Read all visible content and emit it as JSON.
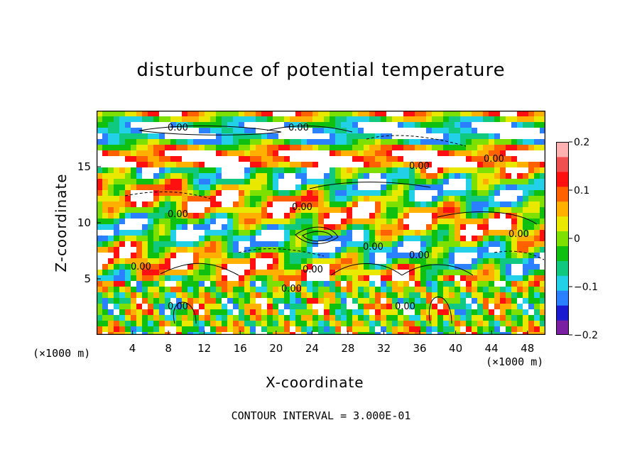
{
  "chart_data": {
    "type": "heatmap",
    "title": "disturbunce of potential temperature",
    "xlabel": "X-coordinate",
    "ylabel": "Z-coordinate",
    "x_unit": "(×1000 m)",
    "xlim": [
      0,
      50
    ],
    "ylim": [
      0,
      20
    ],
    "x_ticks": [
      "4",
      "8",
      "12",
      "16",
      "20",
      "24",
      "28",
      "32",
      "36",
      "40",
      "44",
      "48"
    ],
    "y_ticks": [
      "5",
      "10",
      "15"
    ],
    "colorbar": {
      "range": [
        -0.2,
        0.2
      ],
      "tick_labels": [
        "0.2",
        "0.1",
        "0",
        "−0.1",
        "−0.2"
      ],
      "colors": [
        "#7a1fa2",
        "#1a1ad0",
        "#2a80ff",
        "#22d0e8",
        "#10c880",
        "#10c010",
        "#7ee000",
        "#e8e800",
        "#ffb000",
        "#ff6000",
        "#ff1010",
        "#f05050",
        "#ffb0b0"
      ]
    },
    "contour_labels": [
      "0.00",
      "0.00",
      "0.00",
      "0.00",
      "0.00",
      "0.00",
      "0.00",
      "0.00",
      "0.00",
      "0.00",
      "0.00",
      "0.00",
      "0.00",
      "0.00"
    ],
    "contour_interval_text": "CONTOUR INTERVAL = 3.000E-01"
  }
}
